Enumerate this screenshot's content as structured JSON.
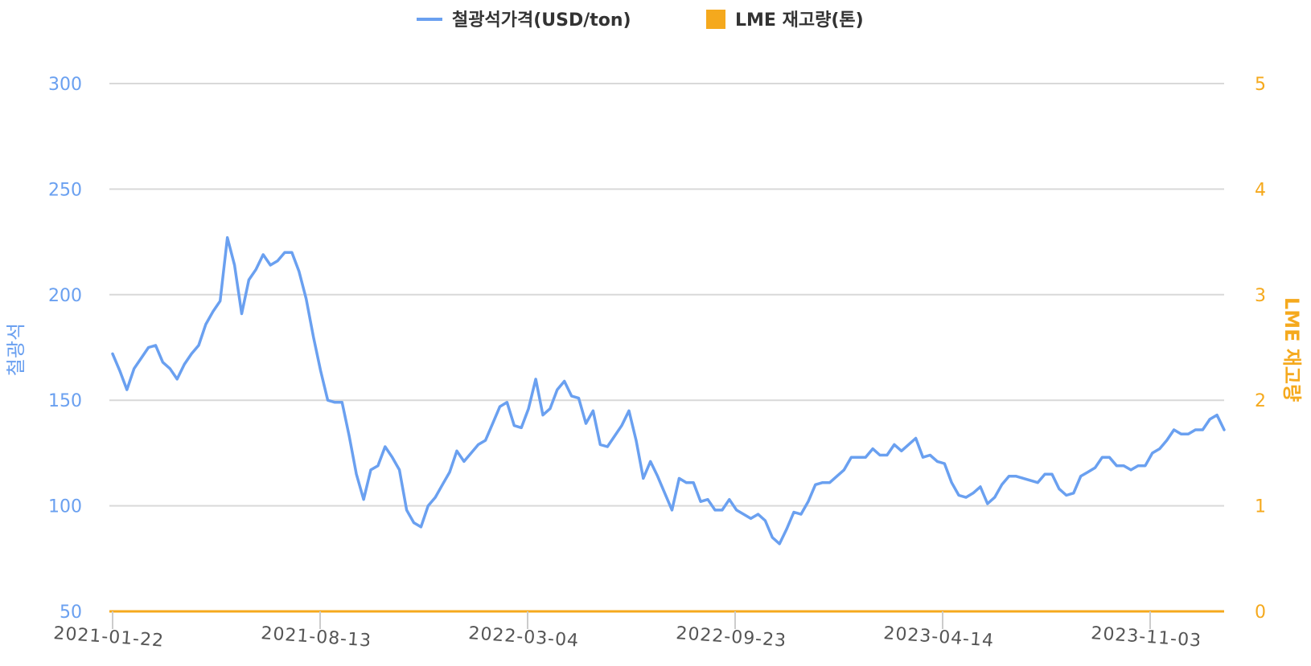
{
  "chart_data": {
    "type": "line",
    "legend": {
      "placement": "top-center",
      "items": [
        {
          "label": "철광석가격(USD/ton)",
          "color": "#6aa0f0",
          "marker": "line"
        },
        {
          "label": "LME 재고량(톤)",
          "color": "#f5a91d",
          "marker": "square"
        }
      ]
    },
    "y_left": {
      "label": "철광석",
      "range": [
        50,
        300
      ],
      "ticks": [
        "50",
        "100",
        "150",
        "200",
        "250",
        "300"
      ],
      "color": "#6aa0f0"
    },
    "y_right": {
      "label": "LME 재고량",
      "range": [
        0,
        5
      ],
      "ticks": [
        "0",
        "1",
        "2",
        "3",
        "4",
        "5"
      ],
      "color": "#f5a91d"
    },
    "x_ticks": [
      "2021-01-22",
      "2021-08-13",
      "2022-03-04",
      "2022-09-23",
      "2023-04-14",
      "2023-11-03"
    ],
    "grid": true,
    "series": [
      {
        "name": "철광석가격(USD/ton)",
        "axis": "left",
        "color": "#6aa0f0",
        "values": [
          172,
          164,
          155,
          165,
          170,
          175,
          176,
          168,
          165,
          160,
          167,
          172,
          176,
          186,
          192,
          197,
          227,
          214,
          191,
          207,
          212,
          219,
          214,
          216,
          220,
          220,
          211,
          198,
          180,
          164,
          150,
          149,
          149,
          133,
          115,
          103,
          117,
          119,
          128,
          123,
          117,
          98,
          92,
          90,
          100,
          104,
          110,
          116,
          126,
          121,
          125,
          129,
          131,
          139,
          147,
          149,
          138,
          137,
          146,
          160,
          143,
          146,
          155,
          159,
          152,
          151,
          139,
          145,
          129,
          128,
          133,
          138,
          145,
          131,
          113,
          121,
          114,
          106,
          98,
          113,
          111,
          111,
          102,
          103,
          98,
          98,
          103,
          98,
          96,
          94,
          96,
          93,
          85,
          82,
          89,
          97,
          96,
          102,
          110,
          111,
          111,
          114,
          117,
          123,
          123,
          123,
          127,
          124,
          124,
          129,
          126,
          129,
          132,
          123,
          124,
          121,
          120,
          111,
          105,
          104,
          106,
          109,
          101,
          104,
          110,
          114,
          114,
          113,
          112,
          111,
          115,
          115,
          108,
          105,
          106,
          114,
          116,
          118,
          123,
          123,
          119,
          119,
          117,
          119,
          119,
          125,
          127,
          131,
          136,
          134,
          134,
          136,
          136,
          141,
          143,
          136
        ]
      },
      {
        "name": "LME 재고량(톤)",
        "axis": "right",
        "color": "#f5a91d",
        "values": [
          0,
          0
        ]
      }
    ]
  }
}
